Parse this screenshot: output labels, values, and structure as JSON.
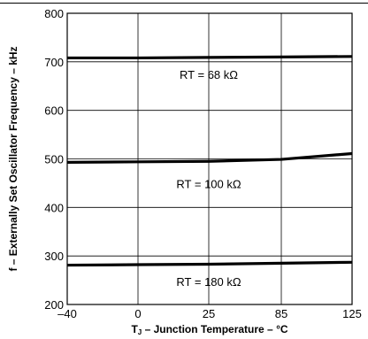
{
  "chart_data": {
    "type": "line",
    "xlabel_main": "T",
    "xlabel_sub": "J",
    "xlabel_rest": " – Junction Temperature – °C",
    "ylabel": "f – Externally Set Oscillator Frequency – kHz",
    "x_ticks": [
      "–40",
      "0",
      "25",
      "85",
      "125"
    ],
    "x_tick_values": [
      -40,
      0,
      25,
      85,
      125
    ],
    "y_ticks": [
      "200",
      "300",
      "400",
      "500",
      "600",
      "700",
      "800"
    ],
    "y_tick_values": [
      200,
      300,
      400,
      500,
      600,
      700,
      800
    ],
    "ylim": [
      200,
      800
    ],
    "grid": true,
    "series": [
      {
        "name": "RT = 68 kΩ",
        "x": [
          -40,
          0,
          25,
          85,
          125
        ],
        "values": [
          708,
          708,
          709,
          710,
          711
        ]
      },
      {
        "name": "RT = 100 kΩ",
        "x": [
          -40,
          0,
          25,
          85,
          125
        ],
        "values": [
          493,
          494,
          495,
          499,
          511
        ]
      },
      {
        "name": "RT = 180 kΩ",
        "x": [
          -40,
          0,
          25,
          85,
          125
        ],
        "values": [
          281,
          282,
          283,
          285,
          287
        ]
      }
    ],
    "labels": [
      {
        "text": "RT = 68 kΩ",
        "x": 25,
        "y": 665
      },
      {
        "text": "RT = 100 kΩ",
        "x": 25,
        "y": 440
      },
      {
        "text": "RT = 180 kΩ",
        "x": 25,
        "y": 238
      }
    ]
  }
}
